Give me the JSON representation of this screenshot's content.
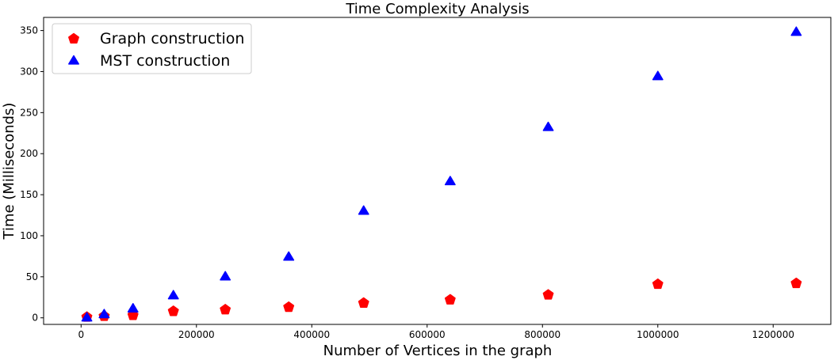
{
  "chart_data": {
    "type": "scatter",
    "title": "Time Complexity Analysis",
    "xlabel": "Number of Vertices in the graph",
    "ylabel": "Time (Milliseconds)",
    "xlim": [
      -65000,
      1300000
    ],
    "ylim": [
      -8,
      366
    ],
    "xticks": [
      0,
      200000,
      400000,
      600000,
      800000,
      1000000,
      1200000
    ],
    "yticks": [
      0,
      50,
      100,
      150,
      200,
      250,
      300,
      350
    ],
    "grid": false,
    "legend_position": "upper-left",
    "series": [
      {
        "name": "Graph construction",
        "marker": "pentagon",
        "color": "#ff0000",
        "x": [
          10000,
          40000,
          90000,
          160000,
          250000,
          360000,
          490000,
          640000,
          810000,
          1000000,
          1240000
        ],
        "y": [
          1,
          2,
          3,
          8,
          10,
          13,
          18,
          22,
          28,
          41,
          42
        ]
      },
      {
        "name": "MST construction",
        "marker": "triangle",
        "color": "#0000ff",
        "x": [
          10000,
          40000,
          90000,
          160000,
          250000,
          360000,
          490000,
          640000,
          810000,
          1000000,
          1240000
        ],
        "y": [
          0,
          4,
          11,
          27,
          50,
          74,
          130,
          166,
          232,
          294,
          348
        ]
      }
    ]
  }
}
